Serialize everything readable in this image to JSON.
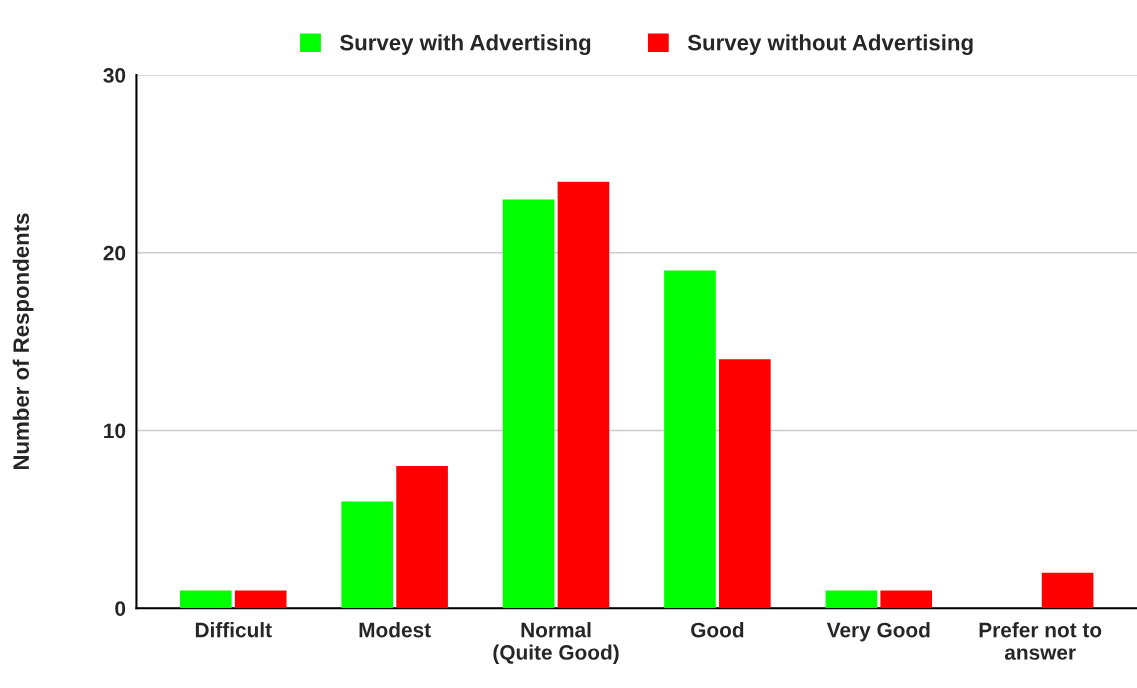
{
  "chart_data": {
    "type": "bar",
    "ylabel": "Number of Respondents",
    "categories": [
      "Difficult",
      "Modest",
      "Normal\n(Quite Good)",
      "Good",
      "Very Good",
      "Prefer not to\nanswer"
    ],
    "series": [
      {
        "name": "Survey with Advertising",
        "color": "#00ff00",
        "values": [
          1,
          6,
          23,
          19,
          1,
          null
        ]
      },
      {
        "name": "Survey without Advertising",
        "color": "#ff0000",
        "values": [
          1,
          8,
          24,
          14,
          1,
          2
        ]
      }
    ],
    "ylim": [
      0,
      30
    ],
    "yticks": [
      0,
      10,
      20,
      30
    ],
    "grid": "y",
    "legend": "top"
  }
}
